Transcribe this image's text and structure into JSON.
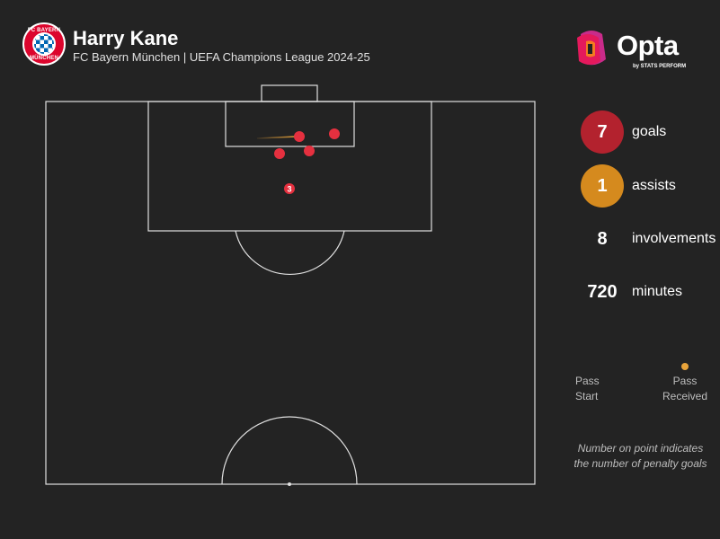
{
  "header": {
    "player_name": "Harry Kane",
    "subtitle": "FC Bayern München | UEFA Champions League 2024-25",
    "club_crest_top_text": "FC BAYERN",
    "club_crest_bottom_text": "MÜNCHEN",
    "club_crest_icon": "bayern-crest-icon"
  },
  "branding": {
    "logo_word": "Opta",
    "logo_tag": "by STATS PERFORM",
    "logo_icon": "opta-logo-icon",
    "logo_colors": [
      "#e4195c",
      "#f47b20",
      "#c92b8a"
    ]
  },
  "stats": {
    "goals": {
      "value": "7",
      "label": "goals",
      "color": "#b3222e"
    },
    "assists": {
      "value": "1",
      "label": "assists",
      "color": "#d58a1e"
    },
    "involvements": {
      "value": "8",
      "label": "involvements"
    },
    "minutes": {
      "value": "720",
      "label": "minutes"
    }
  },
  "legend": {
    "pass_start": [
      "Pass",
      "Start"
    ],
    "pass_received": [
      "Pass",
      "Received"
    ],
    "note": [
      "Number on point indicates",
      "the number of penalty goals"
    ],
    "pass_color": "#e8a33a"
  },
  "pitch": {
    "line_color": "#e0e0e0",
    "background": "#232323",
    "goal_marker_color": "#e5303f",
    "penalty_goals_label": "3"
  }
}
